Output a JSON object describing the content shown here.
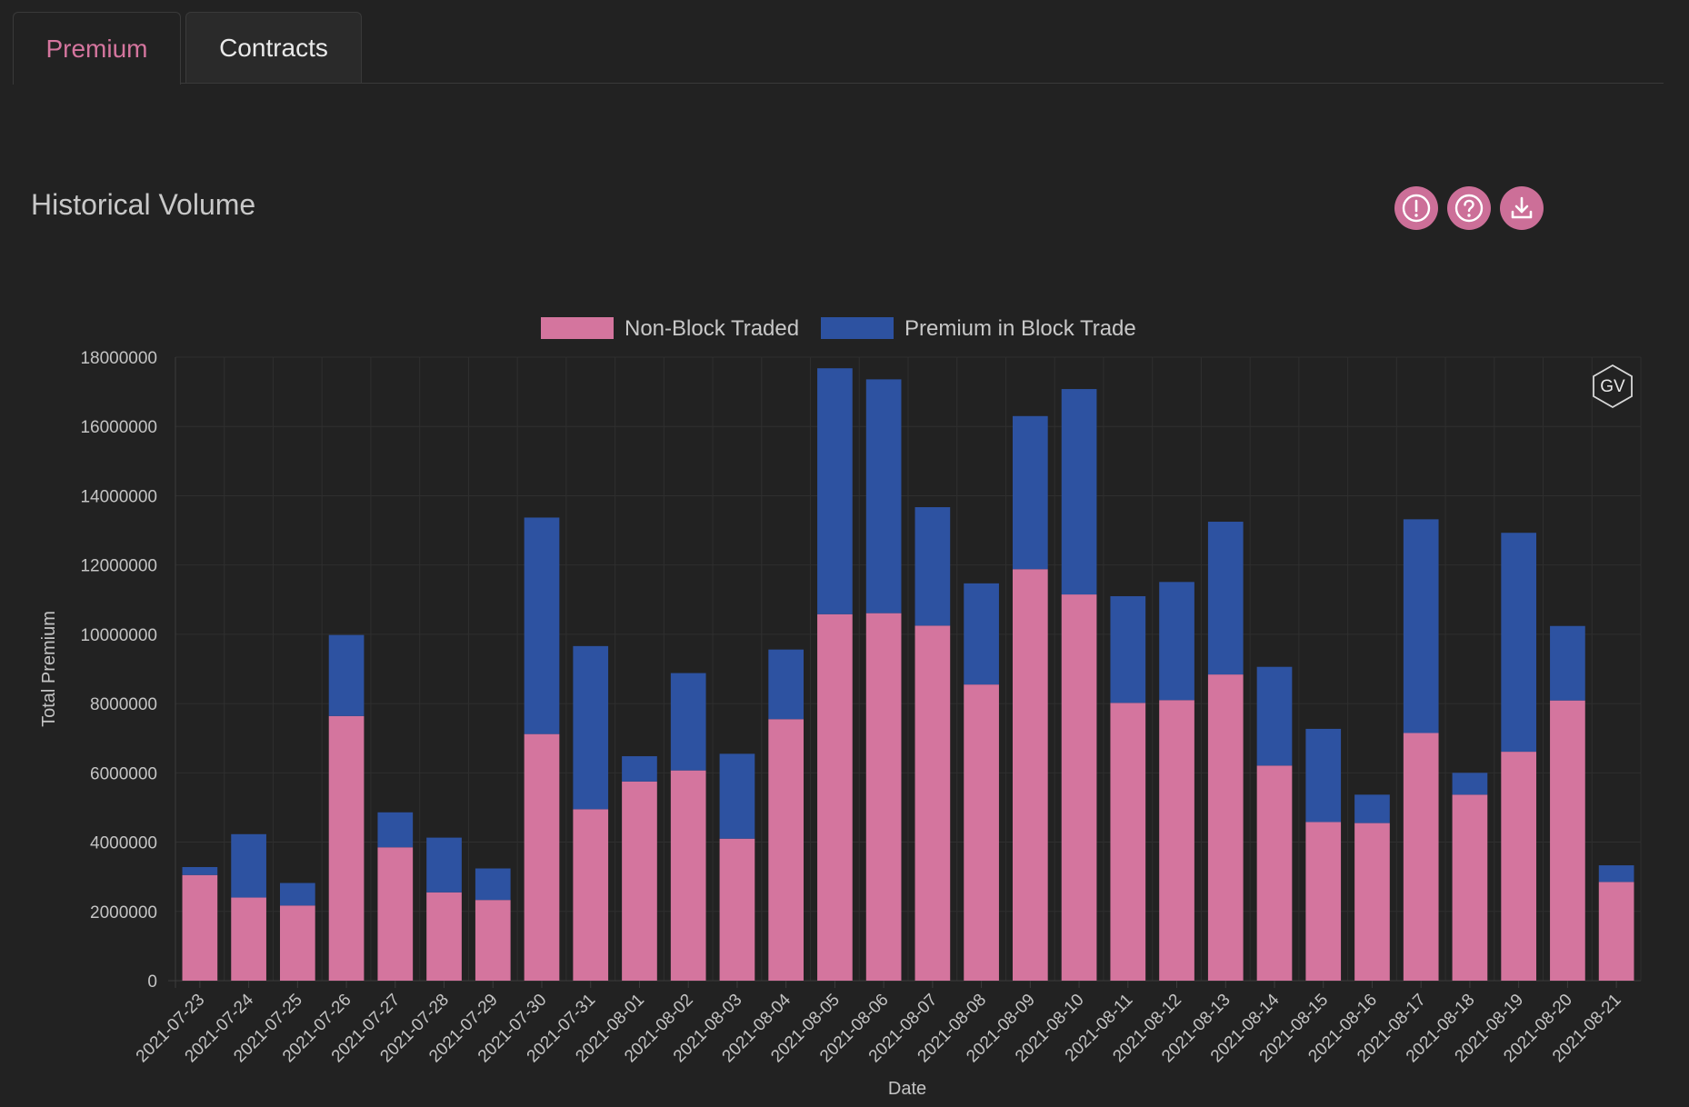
{
  "tabs": [
    {
      "label": "Premium",
      "active": true
    },
    {
      "label": "Contracts",
      "active": false
    }
  ],
  "title": "Historical Volume",
  "actions": {
    "info_icon": "exclamation-circle-icon",
    "help_icon": "question-circle-icon",
    "download_icon": "download-icon"
  },
  "watermark": "GV",
  "colors": {
    "accent": "#cc6f98",
    "non_block": "#d4759e",
    "block": "#2d52a1",
    "background": "#222222"
  },
  "chart_data": {
    "type": "bar",
    "stacked": true,
    "xlabel": "Date",
    "ylabel": "Total Premium",
    "ylim": [
      0,
      18000000
    ],
    "yticks": [
      0,
      2000000,
      4000000,
      6000000,
      8000000,
      10000000,
      12000000,
      14000000,
      16000000,
      18000000
    ],
    "legend_position": "top-center",
    "grid": true,
    "categories": [
      "2021-07-23",
      "2021-07-24",
      "2021-07-25",
      "2021-07-26",
      "2021-07-27",
      "2021-07-28",
      "2021-07-29",
      "2021-07-30",
      "2021-07-31",
      "2021-08-01",
      "2021-08-02",
      "2021-08-03",
      "2021-08-04",
      "2021-08-05",
      "2021-08-06",
      "2021-08-07",
      "2021-08-08",
      "2021-08-09",
      "2021-08-10",
      "2021-08-11",
      "2021-08-12",
      "2021-08-13",
      "2021-08-14",
      "2021-08-15",
      "2021-08-16",
      "2021-08-17",
      "2021-08-18",
      "2021-08-19",
      "2021-08-20",
      "2021-08-21"
    ],
    "series": [
      {
        "name": "Non-Block Traded",
        "color": "#d4759e",
        "values": [
          3050000,
          2400000,
          2170000,
          7640000,
          3850000,
          2550000,
          2330000,
          7120000,
          4950000,
          5750000,
          6070000,
          4100000,
          7550000,
          10580000,
          10610000,
          10250000,
          8550000,
          11880000,
          11150000,
          8020000,
          8100000,
          8840000,
          6210000,
          4580000,
          4550000,
          7150000,
          5370000,
          6610000,
          8090000,
          2850000
        ]
      },
      {
        "name": "Premium in Block Trade",
        "color": "#2d52a1",
        "values": [
          230000,
          1830000,
          650000,
          2340000,
          1010000,
          1580000,
          910000,
          6250000,
          4710000,
          730000,
          2810000,
          2450000,
          2010000,
          7100000,
          6750000,
          3420000,
          2920000,
          4420000,
          5930000,
          3080000,
          3410000,
          4410000,
          2850000,
          2690000,
          820000,
          6170000,
          630000,
          6320000,
          2150000,
          480000
        ]
      }
    ]
  }
}
